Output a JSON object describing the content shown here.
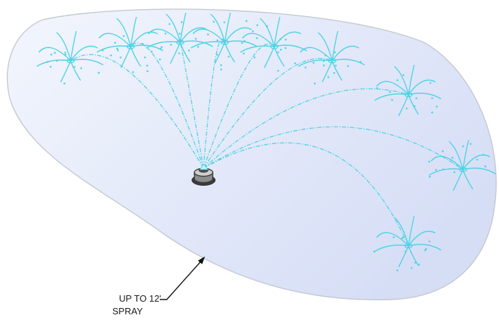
{
  "diagram": {
    "callout": {
      "line1": "UP TO 12'",
      "line2": "SPRAY"
    },
    "colors": {
      "area_light": "#f3f6fd",
      "area_dark": "#d6def6",
      "area_edge": "#c4c8d0",
      "spray": "#4fd3e3",
      "head_dark": "#3a3a3a",
      "head_mid": "#9a9a9a",
      "leader": "#111111"
    },
    "icons": {
      "sprinkler": "sprinkler-head-icon",
      "arrow": "arrow-leader-icon"
    }
  }
}
